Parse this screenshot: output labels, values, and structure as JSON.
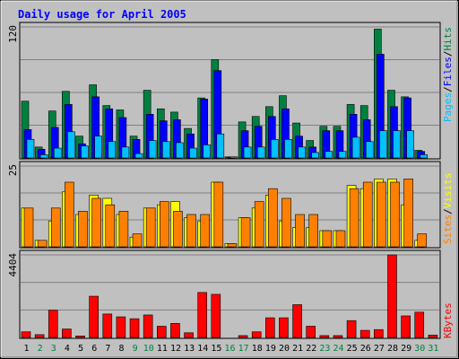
{
  "chart_data": {
    "type": "bar",
    "title": "Daily usage for April 2005",
    "categories": [
      "1",
      "2",
      "3",
      "4",
      "5",
      "6",
      "7",
      "8",
      "9",
      "10",
      "11",
      "12",
      "13",
      "14",
      "15",
      "16",
      "17",
      "18",
      "19",
      "20",
      "21",
      "22",
      "23",
      "24",
      "25",
      "26",
      "27",
      "28",
      "29",
      "30",
      "31"
    ],
    "weekend_days": [
      "2",
      "3",
      "9",
      "10",
      "16",
      "17",
      "23",
      "24",
      "30",
      "31"
    ],
    "panels": [
      {
        "id": "hits",
        "y_max_label": "120",
        "ylim": [
          0,
          120
        ],
        "legend": [
          {
            "label": "Hits",
            "color": "#008040"
          },
          {
            "label": "Files",
            "color": "#0000ff"
          },
          {
            "label": "Pages",
            "color": "#00c0ff"
          }
        ],
        "series": [
          {
            "name": "Hits",
            "color": "#008040",
            "values": [
              52,
              10,
              43,
              61,
              20,
              67,
              48,
              44,
              20,
              62,
              45,
              42,
              27,
              55,
              90,
              1,
              33,
              38,
              47,
              57,
              32,
              16,
              29,
              29,
              49,
              48,
              118,
              62,
              56,
              7,
              0
            ]
          },
          {
            "name": "Files",
            "color": "#0000ff",
            "values": [
              26,
              8,
              28,
              49,
              13,
              56,
              45,
              37,
              17,
              40,
              34,
              35,
              22,
              54,
              80,
              1,
              25,
              29,
              38,
              45,
              20,
              10,
              25,
              25,
              40,
              35,
              95,
              47,
              55,
              6,
              0
            ]
          },
          {
            "name": "Pages",
            "color": "#00c0ff",
            "values": [
              17,
              3,
              9,
              24,
              11,
              20,
              15,
              10,
              4,
              16,
              15,
              14,
              9,
              12,
              22,
              1,
              10,
              10,
              17,
              17,
              10,
              5,
              6,
              6,
              19,
              15,
              25,
              25,
              25,
              3,
              0
            ]
          }
        ]
      },
      {
        "id": "visits",
        "y_max_label": "25",
        "ylim": [
          0,
          25
        ],
        "legend": [
          {
            "label": "Visits",
            "color": "#ffff00"
          },
          {
            "label": "Sites",
            "color": "#ff8000"
          }
        ],
        "series": [
          {
            "name": "Visits",
            "color": "#ffff00",
            "values": [
              12,
              2,
              8,
              17,
              10,
              16,
              15,
              10,
              3,
              12,
              13,
              14,
              9,
              8,
              20,
              1,
              9,
              12,
              16,
              8,
              6,
              6,
              5,
              5,
              19,
              18,
              21,
              21,
              13,
              2,
              0
            ]
          },
          {
            "name": "Sites",
            "color": "#ff8000",
            "values": [
              12,
              2,
              12,
              20,
              11,
              15,
              13,
              11,
              4,
              12,
              14,
              11,
              10,
              10,
              20,
              1,
              9,
              14,
              18,
              15,
              10,
              10,
              5,
              5,
              18,
              20,
              20,
              20,
              21,
              4,
              0
            ]
          }
        ]
      },
      {
        "id": "kbytes",
        "y_max_label": "4404",
        "ylim": [
          0,
          4404
        ],
        "legend": [
          {
            "label": "KBytes",
            "color": "#ff0000"
          }
        ],
        "series": [
          {
            "name": "KBytes",
            "color": "#ff0000",
            "values": [
              300,
              150,
              1450,
              450,
              80,
              2200,
              1250,
              1100,
              1000,
              1200,
              600,
              750,
              250,
              2400,
              2300,
              0,
              100,
              300,
              1050,
              1050,
              1750,
              600,
              100,
              100,
              900,
              380,
              420,
              4404,
              1150,
              1350,
              130
            ]
          }
        ]
      }
    ]
  }
}
